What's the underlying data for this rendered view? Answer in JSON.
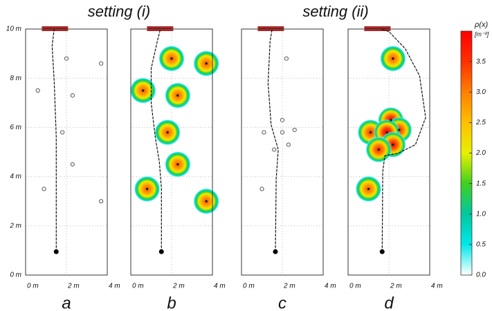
{
  "chart_data": [
    {
      "type": "scatter",
      "title": "setting (i)",
      "label": "a",
      "xlim": [
        0,
        4
      ],
      "ylim": [
        0,
        10
      ],
      "grid": true,
      "xticks": [
        {
          "value": 0,
          "label": "0 m"
        },
        {
          "value": 2,
          "label": "2 m"
        },
        {
          "value": 4,
          "label": "4 m"
        }
      ],
      "yticks": [
        {
          "value": 0,
          "label": "0 m"
        },
        {
          "value": 2,
          "label": "2 m"
        },
        {
          "value": 4,
          "label": "4 m"
        },
        {
          "value": 6,
          "label": "6 m"
        },
        {
          "value": 8,
          "label": "8 m"
        },
        {
          "value": 10,
          "label": "10 m"
        }
      ],
      "points": {
        "x": [
          2.0,
          3.7,
          0.6,
          2.3,
          1.8,
          2.3,
          0.9,
          3.7
        ],
        "y": [
          8.8,
          8.6,
          7.5,
          7.3,
          5.8,
          4.5,
          3.5,
          3.0
        ]
      },
      "path": {
        "x": [
          1.5,
          1.5,
          1.5,
          1.4,
          1.3,
          1.4
        ],
        "y": [
          0.95,
          2.8,
          5.6,
          7.9,
          9.3,
          10
        ]
      }
    },
    {
      "type": "scatter",
      "label": "b",
      "xlim": [
        0,
        4
      ],
      "ylim": [
        0,
        10
      ],
      "grid": true,
      "xticks": [
        {
          "value": 0,
          "label": "0 m"
        },
        {
          "value": 2,
          "label": "2 m"
        },
        {
          "value": 4,
          "label": "4 m"
        }
      ],
      "points": {
        "x": [
          2.0,
          3.7,
          0.6,
          2.3,
          1.8,
          2.3,
          0.8,
          3.7
        ],
        "y": [
          8.8,
          8.6,
          7.5,
          7.3,
          5.8,
          4.5,
          3.5,
          3.0
        ]
      },
      "density": [
        3.1,
        3.1,
        3.1,
        3.1,
        3.1,
        3.1,
        3.1,
        3.1
      ],
      "path": {
        "x": [
          1.5,
          1.5,
          1.4,
          1.2,
          1.0,
          1.0,
          1.3,
          1.45
        ],
        "y": [
          0.95,
          3.5,
          4.6,
          5.6,
          7.0,
          8.4,
          9.5,
          10
        ]
      }
    },
    {
      "type": "scatter",
      "title": "setting (ii)",
      "label": "c",
      "xlim": [
        0,
        4
      ],
      "ylim": [
        0,
        10
      ],
      "grid": true,
      "xticks": [
        {
          "value": 0,
          "label": "0 m"
        },
        {
          "value": 2,
          "label": "2 m"
        },
        {
          "value": 4,
          "label": "4 m"
        }
      ],
      "points": {
        "x": [
          2.2,
          2.0,
          2.6,
          1.1,
          2.0,
          2.3,
          1.6,
          1.0
        ],
        "y": [
          8.8,
          6.3,
          5.9,
          5.8,
          5.8,
          5.3,
          5.1,
          3.5
        ]
      },
      "path": {
        "x": [
          1.66,
          1.7,
          1.8,
          1.45,
          1.3,
          1.4,
          1.5
        ],
        "y": [
          0.95,
          3.9,
          5.1,
          6.1,
          7.8,
          9.5,
          10
        ]
      }
    },
    {
      "type": "scatter",
      "label": "d",
      "xlim": [
        0,
        4
      ],
      "ylim": [
        0,
        10
      ],
      "grid": true,
      "xticks": [
        {
          "value": 0,
          "label": "0 m"
        },
        {
          "value": 2,
          "label": "2 m"
        },
        {
          "value": 4,
          "label": "4 m"
        }
      ],
      "points": {
        "x": [
          2.2,
          2.1,
          2.5,
          1.1,
          1.9,
          2.2,
          1.5,
          1.0
        ],
        "y": [
          8.8,
          6.3,
          5.9,
          5.8,
          5.8,
          5.3,
          5.1,
          3.5
        ]
      },
      "density": [
        3.1,
        3.7,
        3.4,
        3.3,
        3.8,
        3.6,
        3.4,
        3.1
      ],
      "path": {
        "x": [
          1.67,
          1.7,
          1.8,
          2.45,
          3.3,
          3.8,
          3.5,
          2.8,
          2.0,
          1.6
        ],
        "y": [
          0.95,
          4.2,
          4.85,
          4.95,
          5.3,
          6.4,
          8.1,
          9.2,
          9.9,
          10
        ]
      }
    }
  ],
  "colorbar": {
    "label": "ρ(x)",
    "unit": "[m⁻²]",
    "lim": [
      0,
      4.0
    ],
    "colors": [
      "#ffffff",
      "#00e8e8",
      "#00c8a0",
      "#40d020",
      "#e8f000",
      "#ffc000",
      "#ff8000",
      "#ff3000",
      "#ff0000"
    ],
    "ticks": [
      {
        "value": 0,
        "label": "0.0"
      },
      0.5,
      {
        "value": 1,
        "label": "1.0"
      },
      1.5,
      {
        "value": 2,
        "label": "2.0"
      },
      2.5,
      {
        "value": 3,
        "label": "3.0"
      },
      3.5
    ]
  }
}
